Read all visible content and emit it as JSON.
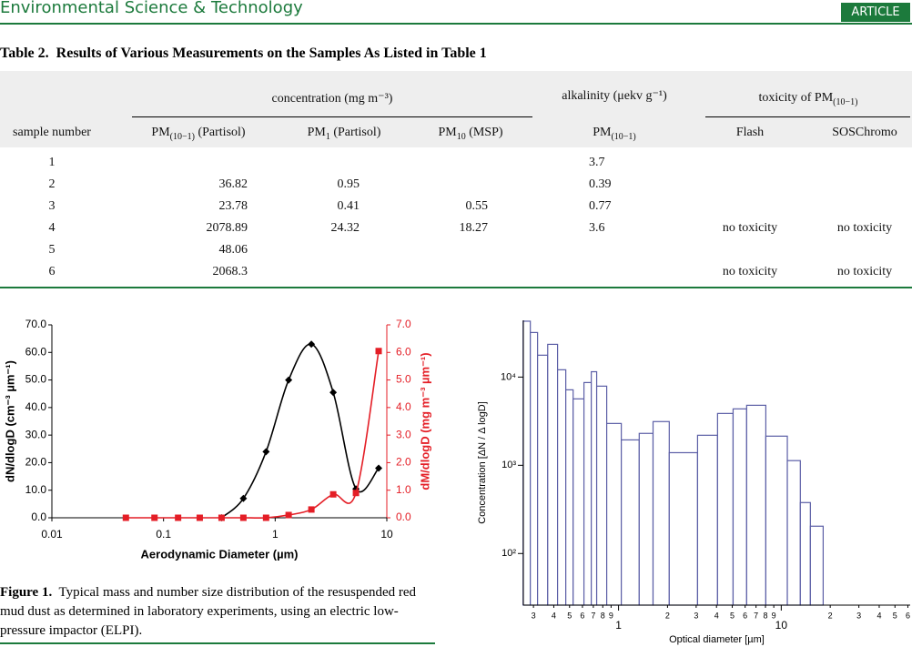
{
  "header": {
    "journal": "Environmental Science & Technology",
    "badge": "ARTICLE"
  },
  "table": {
    "title_label": "Table 2.",
    "title": "Results of Various Measurements on the Samples As Listed in Table 1",
    "groups": [
      {
        "text": "concentration (mg m⁻³)"
      },
      {
        "text": "alkalinity (μekv g⁻¹)"
      },
      {
        "base": "toxicity of PM",
        "sub": "(10−1)"
      }
    ],
    "columns": [
      {
        "text": "sample number"
      },
      {
        "base": "PM",
        "sub": "(10−1)",
        "suffix": " (Partisol)"
      },
      {
        "base": "PM",
        "sub": "1",
        "suffix": " (Partisol)"
      },
      {
        "base": "PM",
        "sub": "10",
        "suffix": " (MSP)"
      },
      {
        "base": "PM",
        "sub": "(10−1)"
      },
      {
        "text": "Flash"
      },
      {
        "text": "SOSChromo"
      }
    ],
    "rows": [
      [
        "1",
        null,
        null,
        null,
        "3.7",
        null,
        null
      ],
      [
        "2",
        "36.82",
        "0.95",
        null,
        "0.39",
        null,
        null
      ],
      [
        "3",
        "23.78",
        "0.41",
        "0.55",
        "0.77",
        null,
        null
      ],
      [
        "4",
        "2078.89",
        "24.32",
        "18.27",
        "3.6",
        "no toxicity",
        "no toxicity"
      ],
      [
        "5",
        "48.06",
        null,
        null,
        null,
        null,
        null
      ],
      [
        "6",
        "2068.3",
        null,
        null,
        null,
        "no toxicity",
        "no toxicity"
      ]
    ]
  },
  "chart_data": [
    {
      "type": "line",
      "xscale": "log",
      "x": [
        0.046,
        0.083,
        0.135,
        0.211,
        0.331,
        0.519,
        0.829,
        1.32,
        2.11,
        3.31,
        5.29,
        8.45
      ],
      "xlabel": "Aerodynamic Diameter (µm)",
      "ylabel": "dN/dlogD (cm⁻³ µm⁻¹)",
      "y2label": "dM/dlogD (mg m⁻³ µm⁻¹)",
      "xlim": [
        0.01,
        10
      ],
      "xticks": [
        0.01,
        0.1,
        1,
        10
      ],
      "ylim": [
        0,
        70
      ],
      "yticks": [
        {
          "value": 0,
          "label": "0.0"
        },
        {
          "value": 10,
          "label": "10.0"
        },
        {
          "value": 20,
          "label": "20.0"
        },
        {
          "value": 30,
          "label": "30.0"
        },
        {
          "value": 40,
          "label": "40.0"
        },
        {
          "value": 50,
          "label": "50.0"
        },
        {
          "value": 60,
          "label": "60.0"
        },
        {
          "value": 70,
          "label": "70.0"
        }
      ],
      "y2lim": [
        0,
        7
      ],
      "y2ticks": [
        {
          "value": 0,
          "label": "0.0"
        },
        {
          "value": 1,
          "label": "1.0"
        },
        {
          "value": 2,
          "label": "2.0"
        },
        {
          "value": 3,
          "label": "3.0"
        },
        {
          "value": 4,
          "label": "4.0"
        },
        {
          "value": 5,
          "label": "5.0"
        },
        {
          "value": 6,
          "label": "6.0"
        },
        {
          "value": 7,
          "label": "7.0"
        }
      ],
      "y2color": "#e41e26",
      "series": [
        {
          "color": "#000000",
          "marker": "diamond",
          "values": [
            null,
            null,
            null,
            null,
            0,
            7,
            24,
            50,
            63,
            45.5,
            10.5,
            18
          ]
        },
        {
          "color": "#e41e26",
          "marker": "square",
          "axis": "y2",
          "values": [
            0,
            0,
            0,
            0,
            0,
            0,
            0,
            0.1,
            0.3,
            0.85,
            0.9,
            6.05
          ]
        }
      ]
    },
    {
      "type": "histogram",
      "xscale": "log",
      "yscale": "log",
      "color": "#5b5ea6",
      "bins": [
        0.259,
        0.287,
        0.318,
        0.367,
        0.422,
        0.474,
        0.526,
        0.613,
        0.68,
        0.734,
        0.846,
        1.04,
        1.34,
        1.63,
        2.05,
        3.06,
        4.06,
        5.06,
        6.13,
        8.04,
        10.9,
        13.1,
        15.1,
        18.1
      ],
      "values": [
        43000,
        32000,
        17700,
        23500,
        12100,
        7170,
        5660,
        8670,
        11500,
        7890,
        2980,
        1940,
        2300,
        3130,
        1390,
        2190,
        3870,
        4360,
        4790,
        2140,
        1130,
        378,
        204
      ],
      "xlabel": "Optical diameter [µm]",
      "ylabel": "Concentration [ΔN / Δ logD]",
      "xlim": [
        0.26,
        62
      ],
      "ylim": [
        26,
        44000
      ],
      "xticks": [
        {
          "value": 0.3,
          "label": "3"
        },
        {
          "value": 0.4,
          "label": "4"
        },
        {
          "value": 0.5,
          "label": "5"
        },
        {
          "value": 0.6,
          "label": "6"
        },
        {
          "value": 0.7,
          "label": "7"
        },
        {
          "value": 0.8,
          "label": "8"
        },
        {
          "value": 0.9,
          "label": "9"
        },
        1,
        2,
        3,
        4,
        5,
        6,
        7,
        8,
        9,
        10,
        {
          "value": 20,
          "label": "2"
        },
        {
          "value": 30,
          "label": "3"
        },
        {
          "value": 40,
          "label": "4"
        },
        {
          "value": 50,
          "label": "5"
        },
        {
          "value": 60,
          "label": "6"
        }
      ],
      "yticks": [
        {
          "value": 100,
          "label": "10²"
        },
        {
          "value": 1000,
          "label": "10³"
        },
        {
          "value": 10000,
          "label": "10⁴"
        }
      ]
    }
  ],
  "caption": {
    "label": "Figure 1.",
    "text": "Typical mass and number size distribution of the resuspended red mud dust as determined in laboratory experiments, using an electric low-pressure impactor (ELPI)."
  }
}
